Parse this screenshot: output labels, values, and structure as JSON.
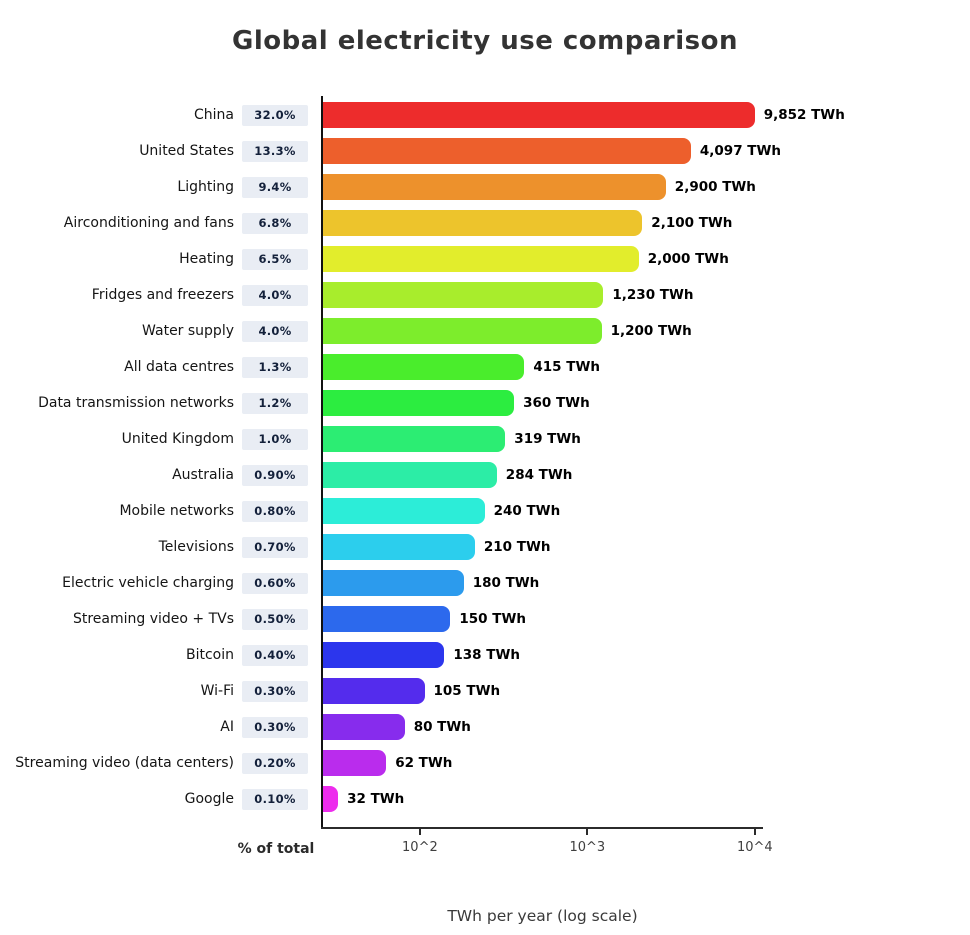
{
  "chart_data": {
    "type": "bar",
    "orientation": "horizontal",
    "title": "Global electricity use comparison",
    "xlabel": "TWh per year (log scale)",
    "pct_axis_label": "% of total",
    "x_scale": "log",
    "xlim": [
      26,
      11200
    ],
    "grid": false,
    "x_ticks": [
      {
        "value": 100,
        "label": "10^2"
      },
      {
        "value": 1000,
        "label": "10^3"
      },
      {
        "value": 10000,
        "label": "10^4"
      }
    ],
    "rows": [
      {
        "label": "China",
        "pct": "32.0%",
        "value": 9852,
        "value_label": "9,852 TWh",
        "color": "#ed2c2c"
      },
      {
        "label": "United States",
        "pct": "13.3%",
        "value": 4097,
        "value_label": "4,097 TWh",
        "color": "#ed5f2c"
      },
      {
        "label": "Lighting",
        "pct": "9.4%",
        "value": 2900,
        "value_label": "2,900 TWh",
        "color": "#ed912c"
      },
      {
        "label": "Airconditioning and fans",
        "pct": "6.8%",
        "value": 2100,
        "value_label": "2,100 TWh",
        "color": "#edc42c"
      },
      {
        "label": "Heating",
        "pct": "6.5%",
        "value": 2000,
        "value_label": "2,000 TWh",
        "color": "#e2ed2c"
      },
      {
        "label": "Fridges and freezers",
        "pct": "4.0%",
        "value": 1230,
        "value_label": "1,230 TWh",
        "color": "#a8ed2c"
      },
      {
        "label": "Water supply",
        "pct": "4.0%",
        "value": 1200,
        "value_label": "1,200 TWh",
        "color": "#7ded2c"
      },
      {
        "label": "All data centres",
        "pct": "1.3%",
        "value": 415,
        "value_label": "415 TWh",
        "color": "#4aed2c"
      },
      {
        "label": "Data transmission networks",
        "pct": "1.2%",
        "value": 360,
        "value_label": "360 TWh",
        "color": "#2ced40"
      },
      {
        "label": "United Kingdom",
        "pct": "1.0%",
        "value": 319,
        "value_label": "319 TWh",
        "color": "#2ced73"
      },
      {
        "label": "Australia",
        "pct": "0.90%",
        "value": 284,
        "value_label": "284 TWh",
        "color": "#2ceda6"
      },
      {
        "label": "Mobile networks",
        "pct": "0.80%",
        "value": 240,
        "value_label": "240 TWh",
        "color": "#2cedd8"
      },
      {
        "label": "Televisions",
        "pct": "0.70%",
        "value": 210,
        "value_label": "210 TWh",
        "color": "#2cceed"
      },
      {
        "label": "Electric vehicle charging",
        "pct": "0.60%",
        "value": 180,
        "value_label": "180 TWh",
        "color": "#2c9bed"
      },
      {
        "label": "Streaming video + TVs",
        "pct": "0.50%",
        "value": 150,
        "value_label": "150 TWh",
        "color": "#2c69ed"
      },
      {
        "label": "Bitcoin",
        "pct": "0.40%",
        "value": 138,
        "value_label": "138 TWh",
        "color": "#2c36ed"
      },
      {
        "label": "Wi-Fi",
        "pct": "0.30%",
        "value": 105,
        "value_label": "105 TWh",
        "color": "#542ced"
      },
      {
        "label": "AI",
        "pct": "0.30%",
        "value": 80,
        "value_label": "80 TWh",
        "color": "#872ced"
      },
      {
        "label": "Streaming video (data centers)",
        "pct": "0.20%",
        "value": 62,
        "value_label": "62 TWh",
        "color": "#ba2ced"
      },
      {
        "label": "Google",
        "pct": "0.10%",
        "value": 32,
        "value_label": "32 TWh",
        "color": "#ed2ced"
      }
    ]
  },
  "colors": {
    "badge_background": "#e9edf4",
    "badge_text": "#13203a",
    "axis_line": "#111111",
    "title_text": "#333333",
    "value_text": "#000000"
  }
}
